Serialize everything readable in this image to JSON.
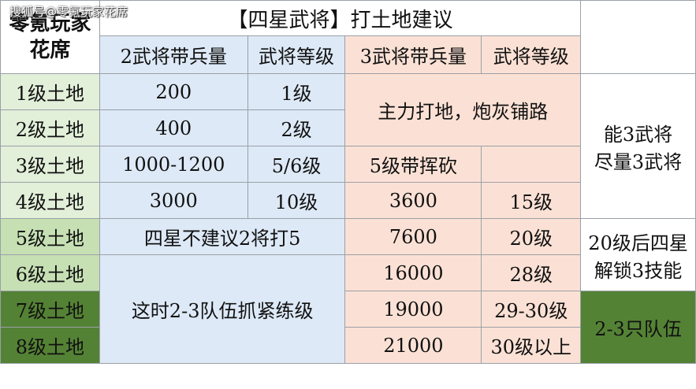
{
  "watermark": "搜狐号@零氪玩家花席",
  "corner": {
    "line1": "零氪玩家",
    "line2": "花席"
  },
  "title": "【四星武将】打土地建议",
  "headers": {
    "h2_troops": "2武将带兵量",
    "h2_level": "武将等级",
    "h3_troops": "3武将带兵量",
    "h3_level": "武将等级"
  },
  "rows": [
    {
      "label": "1级土地",
      "t2": "200",
      "l2": "1级"
    },
    {
      "label": "2级土地",
      "t2": "400",
      "l2": "2级"
    },
    {
      "label": "3级土地",
      "t2": "1000-1200",
      "l2": "5/6级"
    },
    {
      "label": "4级土地",
      "t2": "3000",
      "l2": "10级",
      "t3": "3600",
      "l3": "15级"
    },
    {
      "label": "5级土地",
      "t3": "7600",
      "l3": "20级"
    },
    {
      "label": "6级土地",
      "t3": "16000",
      "l3": "28级"
    },
    {
      "label": "7级土地",
      "t3": "19000",
      "l3": "29-30级"
    },
    {
      "label": "8级土地",
      "t3": "21000",
      "l3": "30级以上"
    }
  ],
  "merged": {
    "main_force": "主力打地，炮灰铺路",
    "lvl5_cmd": "5级带挥砍",
    "no_two": "四星不建议2将打5",
    "team_train": "这时2-3队伍抓紧练级"
  },
  "notes": {
    "note1_a": "能3武将",
    "note1_b": "尽量3武将",
    "note2_a": "20级后四星",
    "note2_b": "解锁3技能",
    "note3": "2-3只队伍"
  }
}
